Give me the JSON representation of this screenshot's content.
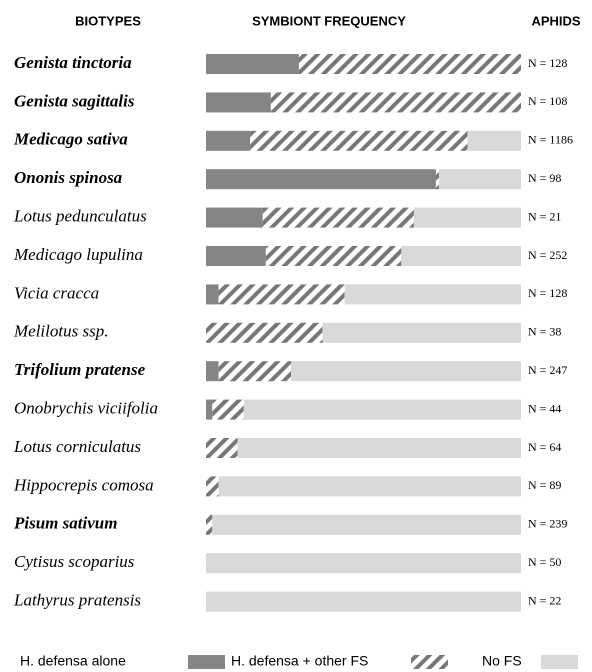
{
  "chart_data": {
    "type": "bar",
    "orientation": "horizontal",
    "stacked": true,
    "headers": [
      "BIOTYPES",
      "SYMBIONT FREQUENCY",
      "APHIDS"
    ],
    "categories": [
      "Genista tinctoria",
      "Genista sagittalis",
      "Medicago sativa",
      "Ononis spinosa",
      "Lotus pedunculatus",
      "Medicago lupulina",
      "Vicia cracca",
      "Melilotus ssp.",
      "Trifolium pratense",
      "Onobrychis viciifolia",
      "Lotus corniculatus",
      "Hippocrepis comosa",
      "Pisum sativum",
      "Cytisus scoparius",
      "Lathyrus pratensis"
    ],
    "emphasis": [
      true,
      true,
      true,
      true,
      false,
      false,
      false,
      false,
      true,
      false,
      false,
      false,
      true,
      false,
      false
    ],
    "sample_sizes": [
      "N = 128",
      "N = 108",
      "N = 1186",
      "N = 98",
      "N = 21",
      "N = 252",
      "N = 128",
      "N = 38",
      "N = 247",
      "N = 44",
      "N = 64",
      "N = 89",
      "N = 239",
      "N = 50",
      "N = 22"
    ],
    "xlim": [
      0,
      100
    ],
    "series": [
      {
        "name": "H. defensa alone",
        "color": "#858585",
        "pattern": "solid",
        "values": [
          29.5,
          20.6,
          14,
          73,
          18,
          19,
          4,
          0,
          4,
          2,
          0,
          0,
          0,
          0,
          0
        ]
      },
      {
        "name": "H. defensa + other FS",
        "color": "#777777",
        "pattern": "hatch",
        "values": [
          70.5,
          79.4,
          69,
          1,
          48,
          43,
          40,
          37,
          23,
          10,
          10,
          4,
          2,
          0,
          0
        ]
      },
      {
        "name": "No FS",
        "color": "#d9d9d9",
        "pattern": "solid",
        "values": [
          0,
          0,
          17,
          26,
          34,
          38,
          56,
          63,
          73,
          88,
          90,
          96,
          98,
          100,
          100
        ]
      }
    ]
  }
}
